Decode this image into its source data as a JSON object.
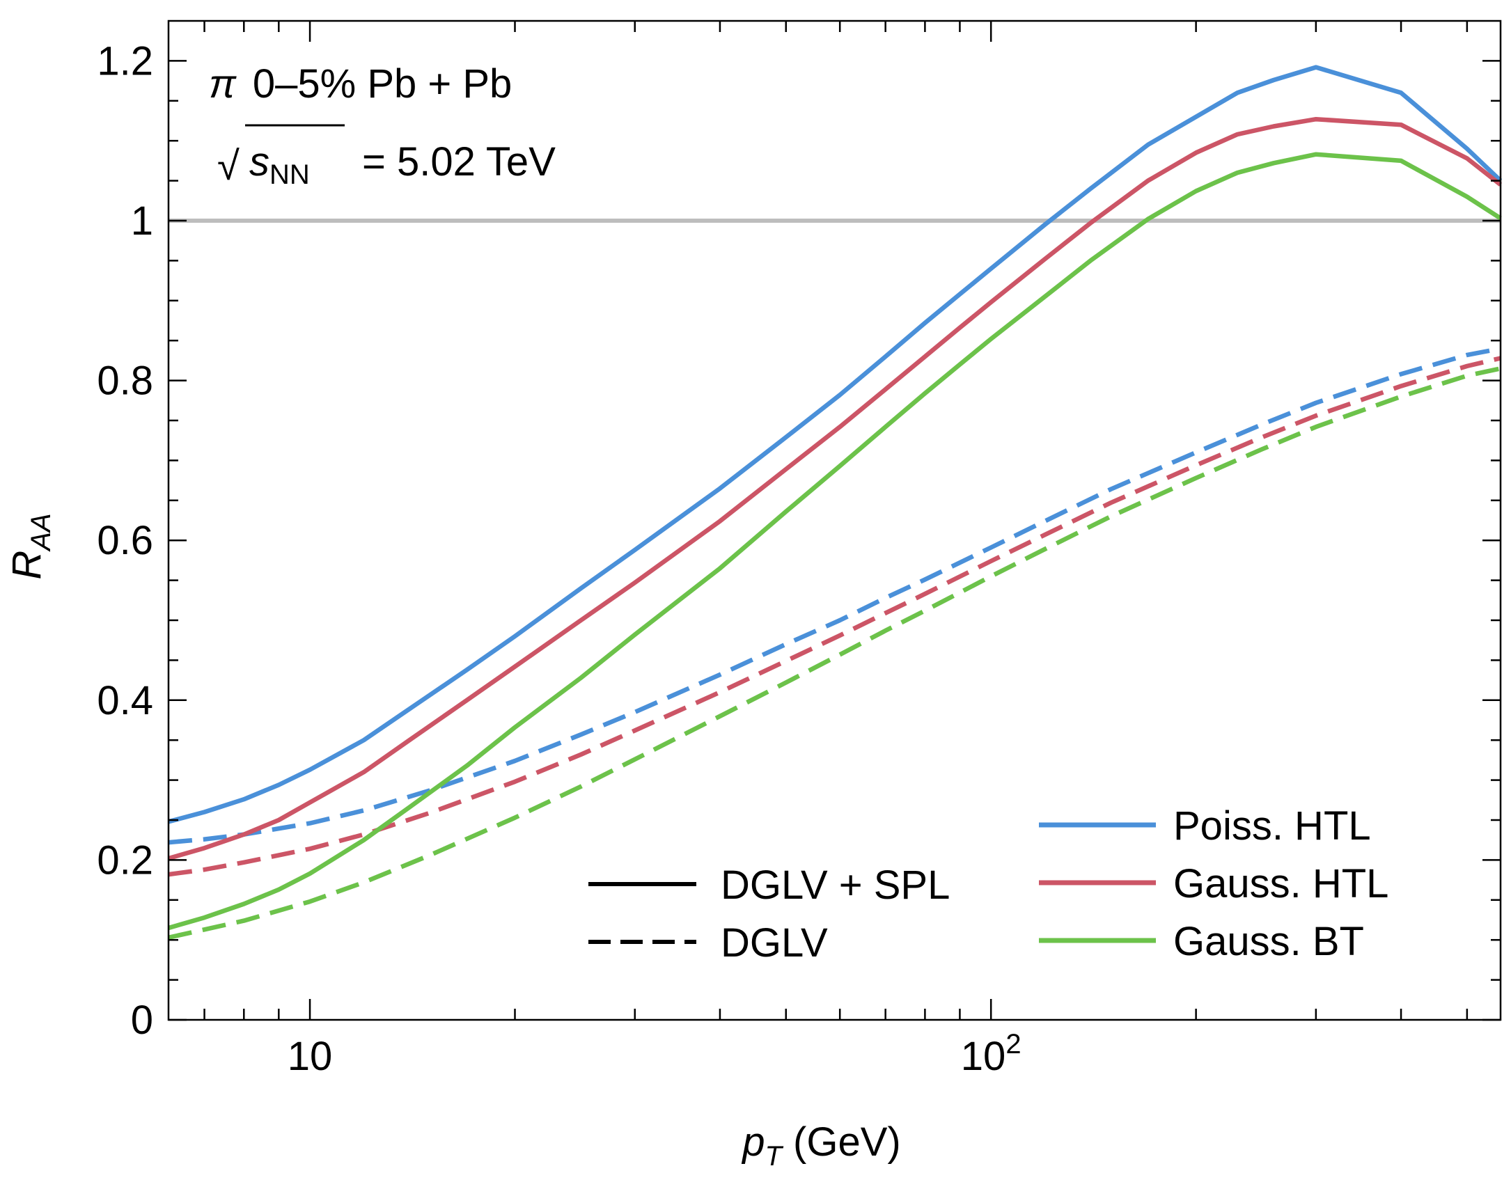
{
  "chart_data": {
    "type": "line",
    "xscale": "log",
    "xlim": [
      6.2,
      560
    ],
    "ylim": [
      0,
      1.25
    ],
    "ylabel": "R_AA",
    "xlabel": "p_T (GeV)",
    "y_ticks": [
      {
        "value": 0,
        "label": "0"
      },
      {
        "value": 0.2,
        "label": "0.2"
      },
      {
        "value": 0.4,
        "label": "0.4"
      },
      {
        "value": 0.6,
        "label": "0.6"
      },
      {
        "value": 0.8,
        "label": "0.8"
      },
      {
        "value": 1.0,
        "label": "1"
      },
      {
        "value": 1.2,
        "label": "1.2"
      }
    ],
    "x_ticks": [
      {
        "value": 10,
        "label": "10"
      },
      {
        "value": 100,
        "label": "10",
        "exponent": "2"
      }
    ],
    "annotations": {
      "species": "π",
      "centrality": "0–5% Pb + Pb",
      "sqrt_symbol": "√",
      "energy_var": "s",
      "energy_sub": "NN",
      "energy_value": "= 5.02 TeV"
    },
    "reference_line": {
      "y": 1.0,
      "color": "#bdbdbd"
    },
    "style_legend": [
      {
        "label": "DGLV + SPL",
        "dash": "solid"
      },
      {
        "label": "DGLV",
        "dash": "dashed"
      }
    ],
    "color_legend": [
      {
        "label": "Poiss. HTL",
        "color": "#4a90d9"
      },
      {
        "label": "Gauss. HTL",
        "color": "#cc5566"
      },
      {
        "label": "Gauss. BT",
        "color": "#6cc24a"
      }
    ],
    "series": [
      {
        "name": "Poiss. HTL — DGLV + SPL",
        "color": "#4a90d9",
        "dash": "solid",
        "points": [
          [
            6.2,
            0.248
          ],
          [
            7,
            0.26
          ],
          [
            8,
            0.276
          ],
          [
            9,
            0.294
          ],
          [
            10,
            0.313
          ],
          [
            12,
            0.35
          ],
          [
            14,
            0.389
          ],
          [
            17,
            0.438
          ],
          [
            20,
            0.48
          ],
          [
            25,
            0.54
          ],
          [
            30,
            0.588
          ],
          [
            40,
            0.665
          ],
          [
            50,
            0.729
          ],
          [
            60,
            0.782
          ],
          [
            70,
            0.83
          ],
          [
            80,
            0.872
          ],
          [
            90,
            0.908
          ],
          [
            100,
            0.94
          ],
          [
            120,
            0.995
          ],
          [
            140,
            1.04
          ],
          [
            170,
            1.095
          ],
          [
            200,
            1.13
          ],
          [
            230,
            1.16
          ],
          [
            260,
            1.176
          ],
          [
            300,
            1.192
          ],
          [
            400,
            1.16
          ],
          [
            500,
            1.09
          ],
          [
            560,
            1.05
          ]
        ]
      },
      {
        "name": "Gauss. HTL — DGLV + SPL",
        "color": "#cc5566",
        "dash": "solid",
        "points": [
          [
            6.2,
            0.202
          ],
          [
            7,
            0.215
          ],
          [
            8,
            0.232
          ],
          [
            9,
            0.25
          ],
          [
            10,
            0.272
          ],
          [
            12,
            0.31
          ],
          [
            14,
            0.35
          ],
          [
            17,
            0.4
          ],
          [
            20,
            0.442
          ],
          [
            25,
            0.5
          ],
          [
            30,
            0.547
          ],
          [
            40,
            0.624
          ],
          [
            50,
            0.689
          ],
          [
            60,
            0.742
          ],
          [
            70,
            0.789
          ],
          [
            80,
            0.83
          ],
          [
            90,
            0.866
          ],
          [
            100,
            0.898
          ],
          [
            120,
            0.952
          ],
          [
            140,
            0.997
          ],
          [
            170,
            1.05
          ],
          [
            200,
            1.085
          ],
          [
            230,
            1.108
          ],
          [
            260,
            1.118
          ],
          [
            300,
            1.127
          ],
          [
            400,
            1.12
          ],
          [
            500,
            1.078
          ],
          [
            560,
            1.045
          ]
        ]
      },
      {
        "name": "Gauss. BT — DGLV + SPL",
        "color": "#6cc24a",
        "dash": "solid",
        "points": [
          [
            6.2,
            0.115
          ],
          [
            7,
            0.128
          ],
          [
            8,
            0.145
          ],
          [
            9,
            0.163
          ],
          [
            10,
            0.183
          ],
          [
            12,
            0.225
          ],
          [
            14,
            0.266
          ],
          [
            17,
            0.318
          ],
          [
            20,
            0.366
          ],
          [
            25,
            0.428
          ],
          [
            30,
            0.482
          ],
          [
            40,
            0.565
          ],
          [
            50,
            0.636
          ],
          [
            60,
            0.693
          ],
          [
            70,
            0.742
          ],
          [
            80,
            0.784
          ],
          [
            90,
            0.82
          ],
          [
            100,
            0.852
          ],
          [
            120,
            0.905
          ],
          [
            140,
            0.95
          ],
          [
            170,
            1.002
          ],
          [
            200,
            1.037
          ],
          [
            230,
            1.06
          ],
          [
            260,
            1.072
          ],
          [
            300,
            1.083
          ],
          [
            400,
            1.075
          ],
          [
            500,
            1.03
          ],
          [
            560,
            1.003
          ]
        ]
      },
      {
        "name": "Poiss. HTL — DGLV",
        "color": "#4a90d9",
        "dash": "dashed",
        "points": [
          [
            6.2,
            0.222
          ],
          [
            7,
            0.226
          ],
          [
            8,
            0.232
          ],
          [
            10,
            0.246
          ],
          [
            12,
            0.262
          ],
          [
            15,
            0.287
          ],
          [
            20,
            0.324
          ],
          [
            25,
            0.357
          ],
          [
            30,
            0.385
          ],
          [
            40,
            0.432
          ],
          [
            50,
            0.47
          ],
          [
            60,
            0.5
          ],
          [
            70,
            0.528
          ],
          [
            80,
            0.551
          ],
          [
            100,
            0.591
          ],
          [
            120,
            0.624
          ],
          [
            150,
            0.664
          ],
          [
            200,
            0.71
          ],
          [
            250,
            0.745
          ],
          [
            300,
            0.772
          ],
          [
            400,
            0.808
          ],
          [
            500,
            0.832
          ],
          [
            560,
            0.84
          ]
        ]
      },
      {
        "name": "Gauss. HTL — DGLV",
        "color": "#cc5566",
        "dash": "dashed",
        "points": [
          [
            6.2,
            0.182
          ],
          [
            7,
            0.188
          ],
          [
            8,
            0.197
          ],
          [
            10,
            0.214
          ],
          [
            12,
            0.232
          ],
          [
            15,
            0.259
          ],
          [
            20,
            0.298
          ],
          [
            25,
            0.332
          ],
          [
            30,
            0.362
          ],
          [
            40,
            0.41
          ],
          [
            50,
            0.449
          ],
          [
            60,
            0.481
          ],
          [
            70,
            0.509
          ],
          [
            80,
            0.533
          ],
          [
            100,
            0.574
          ],
          [
            120,
            0.607
          ],
          [
            150,
            0.647
          ],
          [
            200,
            0.694
          ],
          [
            250,
            0.729
          ],
          [
            300,
            0.756
          ],
          [
            400,
            0.793
          ],
          [
            500,
            0.818
          ],
          [
            560,
            0.828
          ]
        ]
      },
      {
        "name": "Gauss. BT — DGLV",
        "color": "#6cc24a",
        "dash": "dashed",
        "points": [
          [
            6.2,
            0.103
          ],
          [
            7,
            0.113
          ],
          [
            8,
            0.124
          ],
          [
            10,
            0.148
          ],
          [
            12,
            0.172
          ],
          [
            15,
            0.206
          ],
          [
            20,
            0.253
          ],
          [
            25,
            0.292
          ],
          [
            30,
            0.326
          ],
          [
            40,
            0.38
          ],
          [
            50,
            0.422
          ],
          [
            60,
            0.457
          ],
          [
            70,
            0.487
          ],
          [
            80,
            0.512
          ],
          [
            100,
            0.555
          ],
          [
            120,
            0.589
          ],
          [
            150,
            0.63
          ],
          [
            200,
            0.678
          ],
          [
            250,
            0.714
          ],
          [
            300,
            0.742
          ],
          [
            400,
            0.78
          ],
          [
            500,
            0.806
          ],
          [
            560,
            0.815
          ]
        ]
      }
    ]
  }
}
